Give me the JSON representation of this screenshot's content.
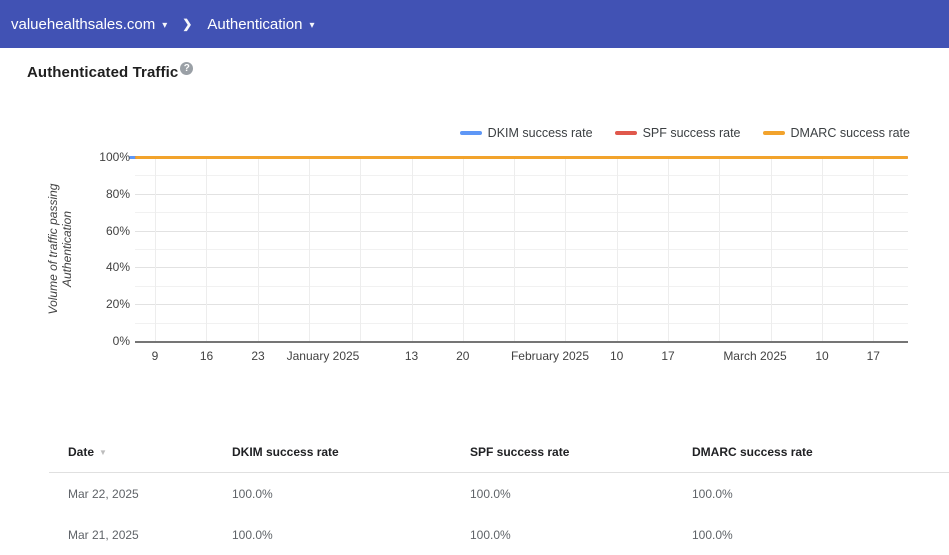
{
  "icons": {
    "caret_down": "▾",
    "chevron_right": "❯",
    "help": "?",
    "sort_desc": "▼"
  },
  "app_bar": {
    "domain": "valuehealthsales.com",
    "section": "Authentication",
    "bg_color": "#4152b4"
  },
  "page": {
    "title": "Authenticated Traffic"
  },
  "chart_data": {
    "type": "line",
    "title": "Authenticated Traffic",
    "ylabel": "Volume of traffic passing Authentication",
    "ylabel_lines": [
      "Volume of traffic passing",
      "Authentication"
    ],
    "ylim": [
      0,
      100
    ],
    "y_tick_labels": [
      "100%",
      "80%",
      "60%",
      "40%",
      "20%",
      "0%"
    ],
    "x_tick_labels": [
      "9",
      "16",
      "23",
      "January 2025",
      "13",
      "20",
      "February 2025",
      "10",
      "17",
      "March 2025",
      "10",
      "17"
    ],
    "x_weekly_points": 15,
    "grid": true,
    "legend_position": "top-right",
    "series": [
      {
        "name": "DKIM success rate",
        "slug": "dkim",
        "color": "#5e97f6",
        "values": [
          100,
          100,
          100,
          100,
          100,
          100,
          100,
          100,
          100,
          100,
          100,
          100,
          100,
          100,
          100
        ]
      },
      {
        "name": "SPF success rate",
        "slug": "spf",
        "color": "#e0584c",
        "values": [
          100,
          100,
          100,
          100,
          100,
          100,
          100,
          100,
          100,
          100,
          100,
          100,
          100,
          100,
          100
        ]
      },
      {
        "name": "DMARC success rate",
        "slug": "dmarc",
        "color": "#f2a32c",
        "values": [
          100,
          100,
          100,
          100,
          100,
          100,
          100,
          100,
          100,
          100,
          100,
          100,
          100,
          100,
          100
        ]
      }
    ]
  },
  "table": {
    "columns": [
      "Date",
      "DKIM success rate",
      "SPF success rate",
      "DMARC success rate"
    ],
    "sorted_by": "Date",
    "sort_direction": "desc",
    "rows": [
      [
        "Mar 22, 2025",
        "100.0%",
        "100.0%",
        "100.0%"
      ],
      [
        "Mar 21, 2025",
        "100.0%",
        "100.0%",
        "100.0%"
      ]
    ]
  }
}
